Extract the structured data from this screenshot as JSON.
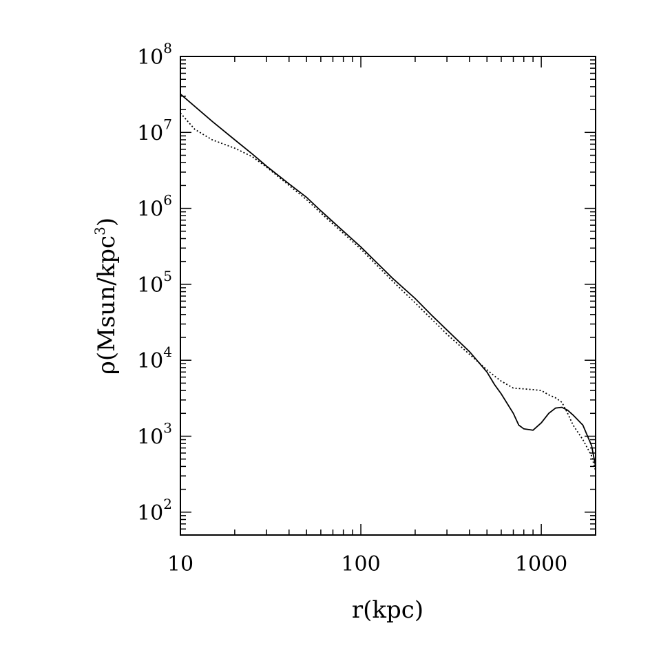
{
  "chart_data": {
    "type": "line",
    "title": "",
    "xlabel": "r(kpc)",
    "ylabel_prefix": "ρ(Msun/kpc",
    "ylabel_exp": "3",
    "ylabel_suffix": ")",
    "xscale": "log",
    "yscale": "log",
    "xlim": [
      10,
      2000
    ],
    "ylim": [
      50,
      100000000
    ],
    "grid": false,
    "x_ticks": [
      {
        "value": 10,
        "label": "10"
      },
      {
        "value": 100,
        "label": "100"
      },
      {
        "value": 1000,
        "label": "1000"
      }
    ],
    "y_ticks": [
      {
        "value": 100,
        "base": "10",
        "exp": "2"
      },
      {
        "value": 1000,
        "base": "10",
        "exp": "3"
      },
      {
        "value": 10000,
        "base": "10",
        "exp": "4"
      },
      {
        "value": 100000,
        "base": "10",
        "exp": "5"
      },
      {
        "value": 1000000,
        "base": "10",
        "exp": "6"
      },
      {
        "value": 10000000,
        "base": "10",
        "exp": "7"
      },
      {
        "value": 100000000,
        "base": "10",
        "exp": "8"
      }
    ],
    "series": [
      {
        "style": "solid",
        "x": [
          10,
          15,
          20,
          25,
          30,
          40,
          50,
          60,
          80,
          100,
          150,
          200,
          250,
          300,
          400,
          500,
          550,
          600,
          700,
          750,
          800,
          900,
          1000,
          1100,
          1200,
          1300,
          1400,
          1500,
          1700,
          1900,
          2000
        ],
        "y": [
          32000000,
          14000000,
          8000000,
          5200000,
          3600000,
          2100000,
          1400000,
          930000,
          500000,
          310000,
          120000,
          65000,
          38000,
          25000,
          13000,
          7000,
          4800,
          3600,
          2000,
          1400,
          1250,
          1200,
          1500,
          2000,
          2350,
          2400,
          2200,
          1900,
          1400,
          750,
          400
        ]
      },
      {
        "style": "dotted",
        "x": [
          10,
          12,
          15,
          20,
          25,
          30,
          40,
          50,
          60,
          80,
          100,
          150,
          200,
          300,
          400,
          500,
          550,
          600,
          700,
          800,
          900,
          1000,
          1100,
          1200,
          1300,
          1400,
          1500,
          1700,
          1900,
          2000
        ],
        "y": [
          18000000,
          11000000,
          8000000,
          6200000,
          4800000,
          3500000,
          2000000,
          1300000,
          870000,
          470000,
          290000,
          110000,
          57000,
          22000,
          12000,
          7500,
          6200,
          5300,
          4300,
          4200,
          4100,
          4000,
          3500,
          3200,
          2800,
          2000,
          1400,
          900,
          550,
          350
        ]
      }
    ]
  }
}
